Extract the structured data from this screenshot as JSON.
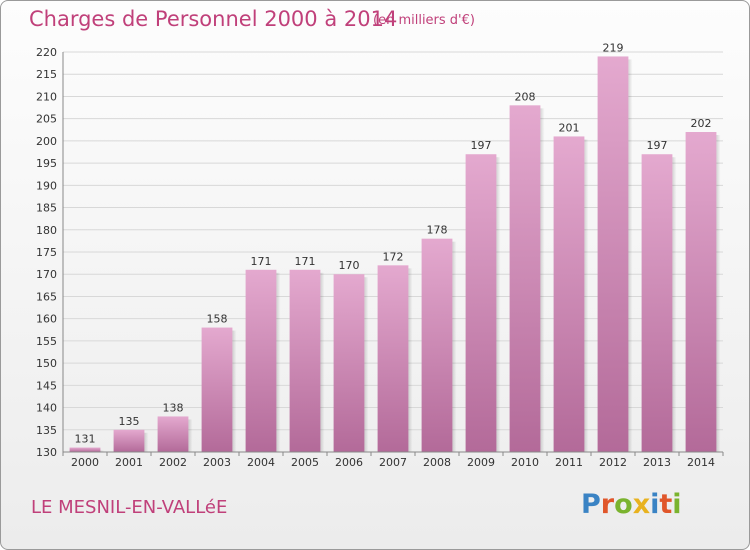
{
  "title": "Charges de Personnel 2000 à 2014",
  "unit_note": "(en milliers d'€)",
  "place": "LE MESNIL-EN-VALLéE",
  "logo": {
    "letters": [
      {
        "ch": "P",
        "color": "#3a83c4"
      },
      {
        "ch": "r",
        "color": "#e0562a"
      },
      {
        "ch": "o",
        "color": "#7ab32e"
      },
      {
        "ch": "x",
        "color": "#e8b21f"
      },
      {
        "ch": "i",
        "color": "#3a83c4"
      },
      {
        "ch": "t",
        "color": "#e0562a"
      },
      {
        "ch": "i",
        "color": "#7ab32e"
      }
    ]
  },
  "colors": {
    "bar_top": "#e4a9cf",
    "bar_bottom": "#b36a99",
    "text_accent": "#c0407a"
  },
  "chart_data": {
    "type": "bar",
    "categories": [
      "2000",
      "2001",
      "2002",
      "2003",
      "2004",
      "2005",
      "2006",
      "2007",
      "2008",
      "2009",
      "2010",
      "2011",
      "2012",
      "2013",
      "2014"
    ],
    "values": [
      131,
      135,
      138,
      158,
      171,
      171,
      170,
      172,
      178,
      197,
      208,
      201,
      219,
      197,
      202
    ],
    "title": "Charges de Personnel 2000 à 2014",
    "ylim": [
      130,
      220
    ],
    "yticks": [
      130,
      135,
      140,
      145,
      150,
      155,
      160,
      165,
      170,
      175,
      180,
      185,
      190,
      195,
      200,
      205,
      210,
      215,
      220
    ],
    "grid": true,
    "data_labels": true
  }
}
